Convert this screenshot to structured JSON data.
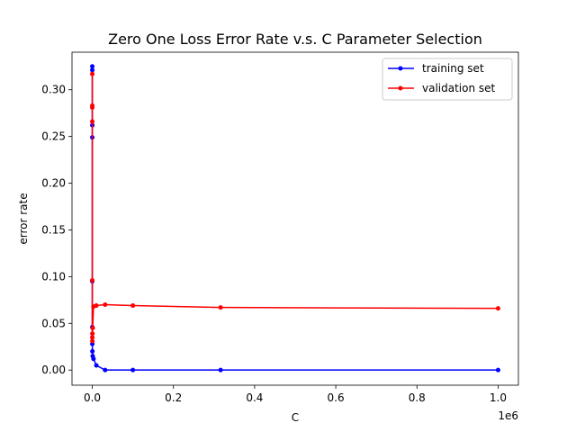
{
  "chart_data": {
    "type": "line",
    "title": "Zero One Loss Error Rate v.s. C Parameter Selection",
    "xlabel": "C",
    "ylabel": "error rate",
    "x_offset_label": "1e6",
    "xlim": [
      -50000,
      1050000
    ],
    "ylim": [
      -0.0162,
      0.3402
    ],
    "xticks": [
      0,
      200000,
      400000,
      600000,
      800000,
      1000000
    ],
    "xtick_labels": [
      "0.0",
      "0.2",
      "0.4",
      "0.6",
      "0.8",
      "1.0"
    ],
    "yticks": [
      0.0,
      0.05,
      0.1,
      0.15,
      0.2,
      0.25,
      0.3
    ],
    "ytick_labels": [
      "0.00",
      "0.05",
      "0.10",
      "0.15",
      "0.20",
      "0.25",
      "0.30"
    ],
    "legend_position": "upper right",
    "series": [
      {
        "name": "training set",
        "color": "#0000ff",
        "x": [
          0.1,
          0.3,
          1,
          3,
          10,
          30,
          100,
          300,
          1000,
          3000,
          10000,
          31623,
          100000,
          316228,
          1000000
        ],
        "y": [
          0.325,
          0.321,
          0.262,
          0.249,
          0.095,
          0.046,
          0.028,
          0.02,
          0.015,
          0.012,
          0.005,
          0.0,
          0.0,
          0.0,
          0.0
        ]
      },
      {
        "name": "validation set",
        "color": "#ff0000",
        "x": [
          0.1,
          0.3,
          1,
          3,
          10,
          30,
          100,
          300,
          1000,
          3000,
          10000,
          31623,
          100000,
          316228,
          1000000
        ],
        "y": [
          0.317,
          0.283,
          0.281,
          0.266,
          0.096,
          0.035,
          0.031,
          0.039,
          0.045,
          0.068,
          0.069,
          0.07,
          0.069,
          0.067,
          0.066
        ]
      }
    ]
  }
}
